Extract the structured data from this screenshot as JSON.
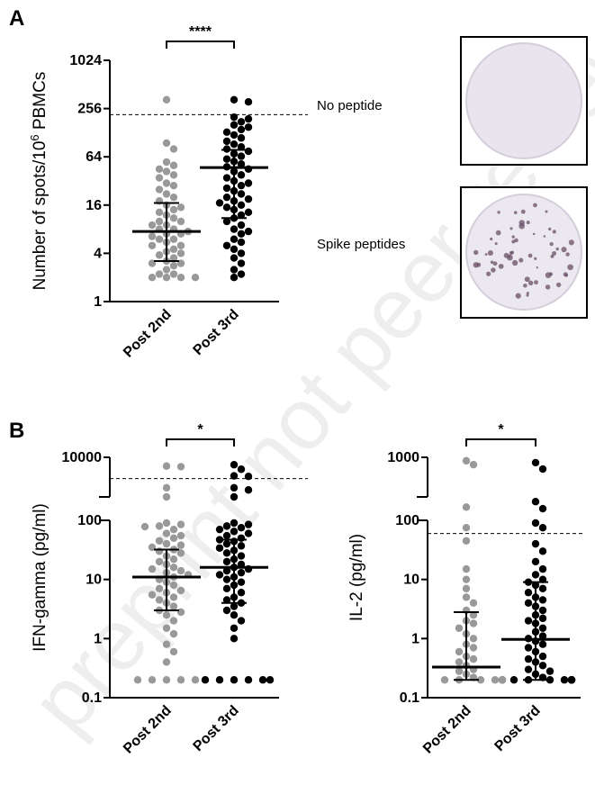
{
  "watermark": "preprint not peer reviewed",
  "panel_a": {
    "letter": "A",
    "well_images": [
      {
        "name": "no-peptide-well",
        "label": "No peptide",
        "spot_count": 0
      },
      {
        "name": "spike-peptides-well",
        "label": "Spike peptides",
        "spot_count": 60
      }
    ]
  },
  "panel_b": {
    "letter": "B"
  },
  "colors": {
    "post2": "#999999",
    "post3": "#000000",
    "well_bg": "#e9e4ee",
    "well_spot": "#6a4f65"
  },
  "chart_data": [
    {
      "type": "scatter",
      "id": "elispot",
      "ylabel": "Number of spots/10",
      "ylabel_sup": "6",
      "ylabel_end": " PBMCs",
      "yscale": "log2",
      "ylim": [
        1,
        1024
      ],
      "yticks": [
        1,
        4,
        16,
        64,
        256,
        1024
      ],
      "ytick_labels": [
        "1",
        "4",
        "16",
        "64",
        "256",
        "1024"
      ],
      "categories": [
        "Post 2nd",
        "Post 3rd"
      ],
      "threshold": 215,
      "significance": "****",
      "series": [
        {
          "name": "Post 2nd",
          "color": "#999999",
          "median": 7.5,
          "q1": 3.2,
          "q3": 17,
          "values": [
            330,
            95,
            80,
            55,
            50,
            45,
            42,
            38,
            35,
            30,
            28,
            25,
            22,
            20,
            18,
            16,
            15,
            14,
            13,
            12,
            11,
            10,
            10,
            9,
            9,
            8,
            8,
            7.5,
            7,
            7,
            6.5,
            6,
            6,
            5.5,
            5,
            5,
            4.5,
            4.2,
            4,
            3.8,
            3.5,
            3.2,
            3,
            3,
            2.8,
            2.5,
            2.2,
            2.2,
            2,
            2,
            2,
            2
          ]
        },
        {
          "name": "Post 3rd",
          "color": "#000000",
          "median": 47,
          "q1": 11,
          "q3": 78,
          "values": [
            330,
            310,
            200,
            190,
            175,
            160,
            150,
            140,
            130,
            120,
            110,
            100,
            92,
            85,
            80,
            75,
            70,
            65,
            60,
            56,
            52,
            48,
            45,
            42,
            38,
            35,
            32,
            30,
            28,
            26,
            24,
            22,
            20,
            19,
            18,
            17,
            16,
            15,
            14,
            13,
            12,
            11,
            10,
            9,
            8,
            7.5,
            7,
            6,
            5.5,
            5,
            4.5,
            4,
            3.5,
            3,
            2.5,
            2.2,
            2
          ]
        }
      ]
    },
    {
      "type": "scatter",
      "id": "ifn",
      "ylabel": "IFN-gamma (pg/ml)",
      "yscale": "log10",
      "ylim": [
        0.1,
        10000
      ],
      "yticks": [
        0.1,
        1,
        10,
        100,
        10000
      ],
      "ytick_labels": [
        "0.1",
        "1",
        "10",
        "100",
        "10000"
      ],
      "categories": [
        "Post 2nd",
        "Post 3rd"
      ],
      "threshold": 2900,
      "significance": "*",
      "series": [
        {
          "name": "Post 2nd",
          "color": "#999999",
          "median": 11,
          "q1": 3,
          "q3": 32,
          "values": [
            6000,
            5800,
            1700,
            1000,
            90,
            85,
            80,
            78,
            70,
            60,
            55,
            50,
            45,
            40,
            38,
            35,
            32,
            30,
            28,
            25,
            22,
            20,
            18,
            16,
            15,
            14,
            13,
            12,
            11,
            10,
            9,
            8,
            7,
            6.5,
            6,
            5.5,
            5,
            4.5,
            4,
            3.5,
            3,
            2.8,
            2.5,
            2,
            1.5,
            1.2,
            0.8,
            0.6,
            0.4,
            0.2,
            0.2,
            0.2,
            0.2,
            0.2
          ]
        },
        {
          "name": "Post 3rd",
          "color": "#000000",
          "median": 16,
          "q1": 4,
          "q3": 47,
          "values": [
            6500,
            5000,
            3400,
            3300,
            1700,
            1500,
            1000,
            90,
            85,
            80,
            75,
            70,
            65,
            60,
            55,
            50,
            47,
            44,
            40,
            37,
            34,
            31,
            28,
            25,
            22,
            20,
            18,
            16,
            15,
            14,
            13,
            12,
            11,
            10,
            9,
            8,
            7,
            6,
            5,
            4.5,
            4,
            3.5,
            3,
            2.5,
            2,
            1.5,
            1,
            0.2,
            0.2,
            0.2,
            0.2,
            0.2,
            0.2
          ]
        }
      ]
    },
    {
      "type": "scatter",
      "id": "il2",
      "ylabel": "IL-2 (pg/ml)",
      "yscale": "log10",
      "ylim": [
        0.1,
        1000
      ],
      "yticks": [
        0.1,
        1,
        10,
        100,
        1000
      ],
      "ytick_labels": [
        "0.1",
        "1",
        "10",
        "100",
        "1000"
      ],
      "categories": [
        "Post 2nd",
        "Post 3rd"
      ],
      "threshold": 60,
      "significance": "*",
      "series": [
        {
          "name": "Post 2nd",
          "color": "#999999",
          "median": 0.33,
          "q1": 0.2,
          "q3": 2.8,
          "values": [
            900,
            800,
            220,
            75,
            45,
            15,
            10,
            7,
            5,
            4,
            3,
            2.5,
            2,
            1.8,
            1.5,
            1.2,
            1,
            0.8,
            0.7,
            0.6,
            0.5,
            0.45,
            0.4,
            0.35,
            0.3,
            0.28,
            0.25,
            0.22,
            0.2,
            0.2,
            0.2,
            0.2,
            0.2,
            0.2,
            0.2,
            0.2,
            0.2,
            0.2,
            0.2,
            0.2,
            0.2,
            0.2
          ]
        },
        {
          "name": "Post 3rd",
          "color": "#000000",
          "median": 0.97,
          "q1": 0.2,
          "q3": 9,
          "values": [
            850,
            700,
            260,
            210,
            90,
            75,
            40,
            30,
            20,
            15,
            12,
            10,
            9,
            8,
            7,
            6,
            5,
            4.5,
            4,
            3.5,
            3,
            2.5,
            2.2,
            2,
            1.8,
            1.5,
            1.3,
            1.1,
            1,
            0.9,
            0.8,
            0.7,
            0.6,
            0.5,
            0.45,
            0.4,
            0.35,
            0.3,
            0.28,
            0.25,
            0.22,
            0.2,
            0.2,
            0.2,
            0.2,
            0.2,
            0.2,
            0.2,
            0.2,
            0.2,
            0.2,
            0.2
          ]
        }
      ]
    }
  ]
}
